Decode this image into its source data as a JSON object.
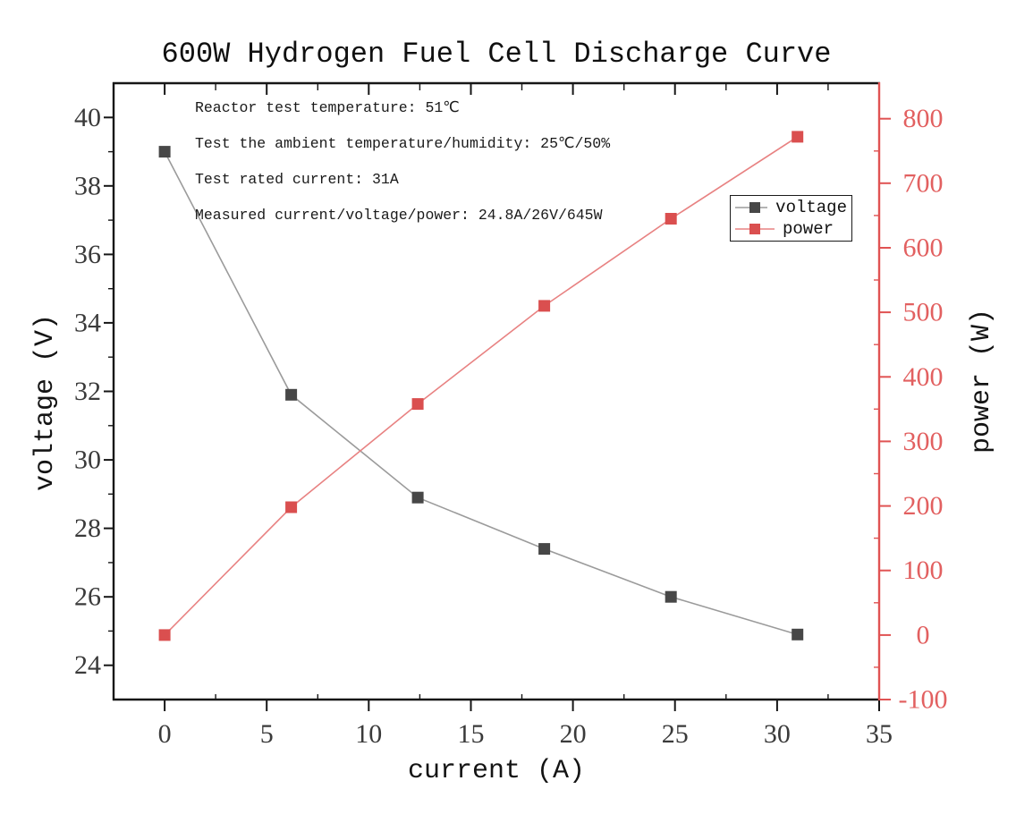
{
  "chart_data": {
    "type": "line",
    "title": "600W Hydrogen Fuel Cell Discharge Curve",
    "annotations": [
      "Reactor test temperature: 51℃",
      "Test the ambient temperature/humidity: 25℃/50%",
      "Test rated current: 31A",
      "Measured current/voltage/power: 24.8A/26V/645W"
    ],
    "xlabel": "current (A)",
    "ylabel_left": "voltage (V)",
    "ylabel_right": "power (W)",
    "x": [
      0,
      6.2,
      12.4,
      18.6,
      24.8,
      31
    ],
    "series": [
      {
        "name": "voltage",
        "axis": "left",
        "values": [
          39.0,
          31.9,
          28.9,
          27.4,
          26.0,
          24.9
        ],
        "marker": "square",
        "marker_color": "#474747",
        "line_color": "#9b9b9b"
      },
      {
        "name": "power",
        "axis": "right",
        "values": [
          0,
          198,
          358,
          510,
          645,
          772
        ],
        "marker": "square",
        "marker_color": "#da4f4f",
        "line_color": "#e88282"
      }
    ],
    "x_axis": {
      "range": [
        -2.5,
        35
      ],
      "major_ticks": [
        0,
        5,
        10,
        15,
        20,
        25,
        30,
        35
      ],
      "minor_ticks": [
        -2.5,
        2.5,
        7.5,
        12.5,
        17.5,
        22.5,
        27.5,
        32.5
      ]
    },
    "left_axis": {
      "range": [
        23,
        41
      ],
      "major_ticks": [
        24,
        26,
        28,
        30,
        32,
        34,
        36,
        38,
        40
      ],
      "minor_ticks": [
        25,
        27,
        29,
        31,
        33,
        35,
        37,
        39
      ]
    },
    "right_axis": {
      "range": [
        -100,
        855
      ],
      "major_ticks": [
        -100,
        0,
        100,
        200,
        300,
        400,
        500,
        600,
        700,
        800
      ],
      "minor_ticks": [
        -50,
        50,
        150,
        250,
        350,
        450,
        550,
        650,
        750
      ]
    },
    "legend": {
      "position": "upper right",
      "entries": [
        "voltage",
        "power"
      ]
    },
    "grid": false,
    "colors": {
      "axis_black": "#161616",
      "axis_red": "#e05353",
      "tick_text_black": "#3a3a3a",
      "tick_text_red": "#e26060",
      "background": "#ffffff"
    }
  }
}
